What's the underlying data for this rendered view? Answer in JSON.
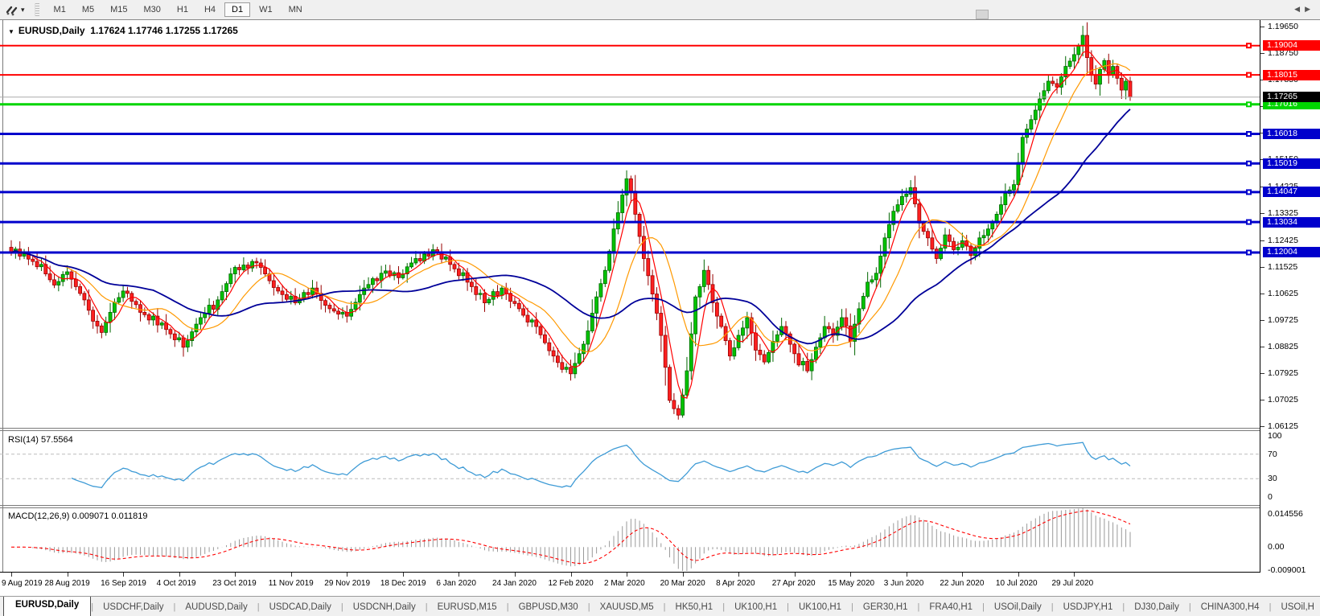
{
  "toolbar": {
    "timeframes": [
      "M1",
      "M5",
      "M15",
      "M30",
      "H1",
      "H4",
      "D1",
      "W1",
      "MN"
    ],
    "active_timeframe": "D1",
    "menu_caret": "▾"
  },
  "chart_title": {
    "menu_icon": "▼",
    "symbol": "EURUSD,Daily",
    "quote": "1.17624 1.17746 1.17255 1.17265"
  },
  "indicators": {
    "rsi": {
      "label": "RSI(14)",
      "value": "57.5564",
      "axis_labels": [
        {
          "text": "100",
          "level": 100
        },
        {
          "text": "70",
          "level": 70
        },
        {
          "text": "30",
          "level": 30
        },
        {
          "text": "0",
          "level": 0
        }
      ],
      "dashed_levels": [
        70,
        30
      ],
      "line_color": "#3E9BD6"
    },
    "macd": {
      "label": "MACD(12,26,9)",
      "values": "0.009071 0.011819",
      "axis_labels": [
        {
          "text": "0.014556",
          "value": 0.014556
        },
        {
          "text": "0.00",
          "value": 0.0
        },
        {
          "text": "-0.009001",
          "value": -0.009001
        }
      ],
      "hist_color": "#9a9a9a",
      "signal_color": "#FF0000"
    }
  },
  "tabs": {
    "items": [
      {
        "label": "EURUSD,Daily",
        "active": true
      },
      {
        "label": "USDCHF,Daily",
        "active": false
      },
      {
        "label": "AUDUSD,Daily",
        "active": false
      },
      {
        "label": "USDCAD,Daily",
        "active": false
      },
      {
        "label": "USDCNH,Daily",
        "active": false
      },
      {
        "label": "EURUSD,M15",
        "active": false
      },
      {
        "label": "GBPUSD,M30",
        "active": false
      },
      {
        "label": "XAUUSD,M5",
        "active": false
      },
      {
        "label": "HK50,H1",
        "active": false
      },
      {
        "label": "UK100,H1",
        "active": false
      },
      {
        "label": "UK100,H1",
        "active": false
      },
      {
        "label": "GER30,H1",
        "active": false
      },
      {
        "label": "FRA40,H1",
        "active": false
      },
      {
        "label": "USOil,Daily",
        "active": false
      },
      {
        "label": "USDJPY,H1",
        "active": false
      },
      {
        "label": "DJ30,Daily",
        "active": false
      },
      {
        "label": "CHINA300,H4",
        "active": false
      },
      {
        "label": "USOil,H",
        "active": false
      }
    ],
    "scroll_left": "◀",
    "scroll_right": "▶"
  },
  "chart_data": {
    "type": "candlestick",
    "symbol": "EURUSD",
    "timeframe": "Daily",
    "quote": {
      "open": "1.17624",
      "high": "1.17746",
      "low": "1.17255",
      "close": "1.17265"
    },
    "bull_color": "#00C400",
    "bull_edge": "#006600",
    "bear_color": "#FF2020",
    "bear_edge": "#980000",
    "x_labels": [
      "9 Aug 2019",
      "28 Aug 2019",
      "16 Sep 2019",
      "4 Oct 2019",
      "23 Oct 2019",
      "11 Nov 2019",
      "29 Nov 2019",
      "18 Dec 2019",
      "6 Jan 2020",
      "24 Jan 2020",
      "12 Feb 2020",
      "2 Mar 2020",
      "20 Mar 2020",
      "8 Apr 2020",
      "27 Apr 2020",
      "15 May 2020",
      "3 Jun 2020",
      "22 Jun 2020",
      "10 Jul 2020",
      "29 Jul 2020"
    ],
    "bars_per_label": 13,
    "price_axis_ticks": [
      {
        "label": "1.19650",
        "price": 1.1965
      },
      {
        "label": "1.18750",
        "price": 1.1875
      },
      {
        "label": "1.17850",
        "price": 1.1785
      },
      {
        "label": "1.16950",
        "price": 1.1695
      },
      {
        "label": "1.16050",
        "price": 1.1605
      },
      {
        "label": "1.15150",
        "price": 1.1515
      },
      {
        "label": "1.14225",
        "price": 1.14225
      },
      {
        "label": "1.13325",
        "price": 1.13325
      },
      {
        "label": "1.12425",
        "price": 1.12425
      },
      {
        "label": "1.11525",
        "price": 1.11525
      },
      {
        "label": "1.10625",
        "price": 1.10625
      },
      {
        "label": "1.09725",
        "price": 1.09725
      },
      {
        "label": "1.08825",
        "price": 1.08825
      },
      {
        "label": "1.07925",
        "price": 1.07925
      },
      {
        "label": "1.07025",
        "price": 1.07025
      },
      {
        "label": "1.06125",
        "price": 1.06125
      }
    ],
    "hlines": [
      {
        "price": 1.19004,
        "label": "1.19004",
        "color": "#FF0000",
        "width": 2
      },
      {
        "price": 1.18015,
        "label": "1.18015",
        "color": "#FF0000",
        "width": 2
      },
      {
        "price": 1.17016,
        "label": "1.17016",
        "color": "#00D500",
        "width": 3
      },
      {
        "price": 1.16018,
        "label": "1.16018",
        "color": "#0000CC",
        "width": 3
      },
      {
        "price": 1.15019,
        "label": "1.15019",
        "color": "#0000CC",
        "width": 3
      },
      {
        "price": 1.14047,
        "label": "1.14047",
        "color": "#0000CC",
        "width": 3
      },
      {
        "price": 1.13034,
        "label": "1.13034",
        "color": "#0000CC",
        "width": 3
      },
      {
        "price": 1.12004,
        "label": "1.12004",
        "color": "#0000CC",
        "width": 3
      }
    ],
    "current_price": {
      "value": 1.17265,
      "label": "1.17265",
      "badge_color": "#000000",
      "line_color": "#aaaaaa"
    },
    "moving_averages": [
      {
        "period": 5,
        "color": "#FF0000",
        "width": 1.2
      },
      {
        "period": 13,
        "color": "#FF9900",
        "width": 1.2
      },
      {
        "period": 34,
        "color": "#000099",
        "width": 1.8
      }
    ],
    "closes": [
      1.12,
      1.1212,
      1.1188,
      1.1196,
      1.1178,
      1.117,
      1.1152,
      1.116,
      1.1128,
      1.1108,
      1.109,
      1.1102,
      1.1126,
      1.1135,
      1.111,
      1.1085,
      1.1062,
      1.104,
      1.1005,
      1.0968,
      1.0952,
      1.093,
      1.0965,
      1.0998,
      1.1032,
      1.1048,
      1.107,
      1.1062,
      1.1035,
      1.1024,
      1.0998,
      1.099,
      1.0972,
      1.0985,
      1.0955,
      1.0962,
      1.094,
      1.0925,
      1.0905,
      1.0912,
      1.088,
      1.0902,
      1.0932,
      1.0958,
      1.098,
      1.0995,
      1.1022,
      1.1008,
      1.104,
      1.1068,
      1.1095,
      1.1128,
      1.115,
      1.1142,
      1.1158,
      1.1148,
      1.117,
      1.1165,
      1.115,
      1.1128,
      1.1105,
      1.1082,
      1.107,
      1.1058,
      1.1042,
      1.1052,
      1.103,
      1.1042,
      1.1065,
      1.1058,
      1.108,
      1.1062,
      1.1038,
      1.1022,
      1.101,
      1.1002,
      1.0992,
      1.0998,
      1.0985,
      1.1008,
      1.1032,
      1.1058,
      1.108,
      1.1092,
      1.1112,
      1.1105,
      1.113,
      1.1138,
      1.1122,
      1.1132,
      1.1115,
      1.1128,
      1.1152,
      1.1165,
      1.118,
      1.1172,
      1.1195,
      1.1188,
      1.121,
      1.1202,
      1.1178,
      1.1185,
      1.116,
      1.1145,
      1.1122,
      1.1132,
      1.11,
      1.1085,
      1.1058,
      1.1062,
      1.103,
      1.1042,
      1.1068,
      1.1055,
      1.108,
      1.1062,
      1.1035,
      1.1028,
      1.101,
      1.0988,
      1.0965,
      1.0972,
      1.095,
      1.0922,
      1.0895,
      1.0868,
      1.085,
      1.0828,
      1.0805,
      1.0812,
      1.079,
      1.0825,
      1.0858,
      1.089,
      1.0935,
      1.0995,
      1.105,
      1.1095,
      1.114,
      1.1205,
      1.128,
      1.1335,
      1.1395,
      1.145,
      1.1408,
      1.133,
      1.1255,
      1.118,
      1.1122,
      1.106,
      1.0995,
      1.092,
      1.0812,
      1.07,
      1.0672,
      1.065,
      1.0718,
      1.08,
      1.0925,
      1.105,
      1.1085,
      1.114,
      1.1092,
      1.103,
      1.0985,
      1.095,
      1.0902,
      1.085,
      1.0878,
      1.092,
      1.0945,
      1.098,
      1.0928,
      1.087,
      1.0855,
      1.083,
      1.0862,
      1.09,
      1.0922,
      1.095,
      1.0925,
      1.089,
      1.0858,
      1.082,
      1.0832,
      1.08,
      1.0838,
      1.088,
      1.0912,
      1.095,
      1.0942,
      1.092,
      1.0948,
      1.098,
      1.0952,
      1.09,
      1.0958,
      1.101,
      1.1052,
      1.11,
      1.1108,
      1.113,
      1.1188,
      1.125,
      1.1295,
      1.134,
      1.1362,
      1.139,
      1.1398,
      1.142,
      1.1365,
      1.13,
      1.1272,
      1.125,
      1.1212,
      1.118,
      1.1215,
      1.126,
      1.1238,
      1.121,
      1.1218,
      1.124,
      1.1222,
      1.119,
      1.1215,
      1.125,
      1.1258,
      1.128,
      1.1302,
      1.133,
      1.1362,
      1.14,
      1.1412,
      1.143,
      1.1505,
      1.159,
      1.1618,
      1.165,
      1.1682,
      1.172,
      1.1748,
      1.178,
      1.1772,
      1.176,
      1.1795,
      1.183,
      1.1848,
      1.187,
      1.19,
      1.1935,
      1.186,
      1.18,
      1.177,
      1.182,
      1.185,
      1.18,
      1.183,
      1.179,
      1.175,
      1.178,
      1.17265
    ]
  }
}
